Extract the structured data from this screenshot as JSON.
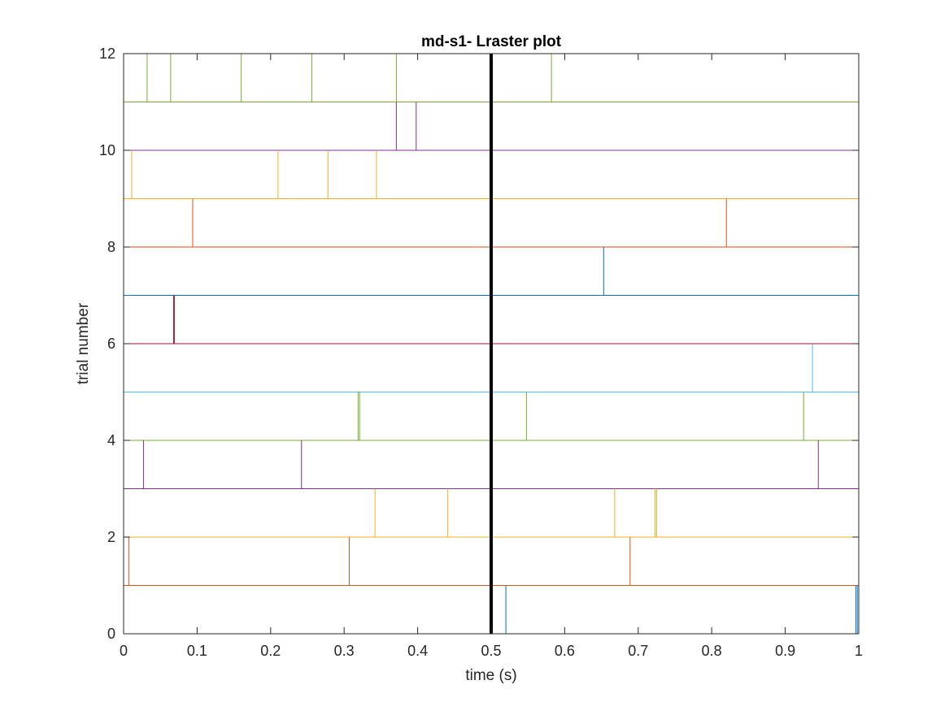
{
  "chart_data": {
    "type": "scatter",
    "title": "md-s1- Lraster plot",
    "xlabel": "time (s)",
    "ylabel": "trial number",
    "xlim": [
      0,
      1
    ],
    "ylim": [
      0,
      12
    ],
    "xticks": [
      0,
      0.1,
      0.2,
      0.3,
      0.4,
      0.5,
      0.6,
      0.7,
      0.8,
      0.9,
      1
    ],
    "xtick_labels": [
      "0",
      "0.1",
      "0.2",
      "0.3",
      "0.4",
      "0.5",
      "0.6",
      "0.7",
      "0.8",
      "0.9",
      "1"
    ],
    "yticks": [
      0,
      2,
      4,
      6,
      8,
      10,
      12
    ],
    "ytick_labels": [
      "0",
      "2",
      "4",
      "6",
      "8",
      "10",
      "12"
    ],
    "grid": false,
    "legend": "none",
    "event_marker": {
      "x": 0.5,
      "color": "#000000"
    },
    "series": [
      {
        "trial": 1,
        "color": "#0072BD",
        "spikes": [
          0.52,
          0.996,
          0.998
        ]
      },
      {
        "trial": 2,
        "color": "#D95319",
        "spikes": [
          0.007,
          0.307,
          0.689
        ]
      },
      {
        "trial": 3,
        "color": "#EDB120",
        "spikes": [
          0.342,
          0.441,
          0.668,
          0.723,
          0.725
        ]
      },
      {
        "trial": 4,
        "color": "#7E2F8E",
        "spikes": [
          0.027,
          0.242,
          0.945
        ]
      },
      {
        "trial": 5,
        "color": "#77AC30",
        "spikes": [
          0.319,
          0.321,
          0.548,
          0.925
        ]
      },
      {
        "trial": 6,
        "color": "#4DBEEE",
        "spikes": [
          0.937
        ]
      },
      {
        "trial": 7,
        "color": "#A2142F",
        "spikes": [
          0.068,
          0.069
        ]
      },
      {
        "trial": 8,
        "color": "#0072BD",
        "spikes": [
          0.653
        ]
      },
      {
        "trial": 9,
        "color": "#D95319",
        "spikes": [
          0.094,
          0.82
        ]
      },
      {
        "trial": 10,
        "color": "#EDB120",
        "spikes": [
          0.011,
          0.21,
          0.278,
          0.344
        ]
      },
      {
        "trial": 11,
        "color": "#7E2F8E",
        "spikes": [
          0.371,
          0.398
        ]
      },
      {
        "trial": 12,
        "color": "#77AC30",
        "spikes": [
          0.032,
          0.064,
          0.16,
          0.256,
          0.371,
          0.582
        ]
      }
    ]
  }
}
